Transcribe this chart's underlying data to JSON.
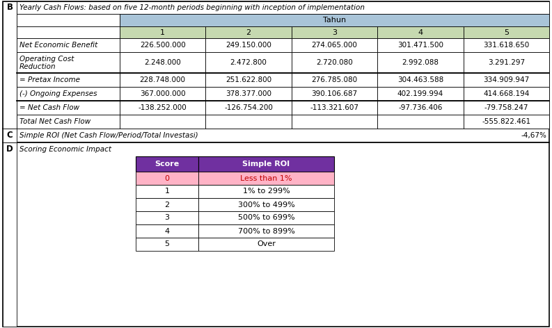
{
  "section_B_title": "Yearly Cash Flows: based on five 12-month periods beginning with inception of implementation",
  "tahun_header": "Tahun",
  "col_headers": [
    "1",
    "2",
    "3",
    "4",
    "5"
  ],
  "rows": [
    {
      "label": "Net Economic Benefit",
      "values": [
        "226.500.000",
        "249.150.000",
        "274.065.000",
        "301.471.500",
        "331.618.650"
      ],
      "top_border": false,
      "tall": false
    },
    {
      "label": "Operating Cost\nReduction",
      "values": [
        "2.248.000",
        "2.472.800",
        "2.720.080",
        "2.992.088",
        "3.291.297"
      ],
      "top_border": false,
      "tall": true
    },
    {
      "label": "= Pretax Income",
      "values": [
        "228.748.000",
        "251.622.800",
        "276.785.080",
        "304.463.588",
        "334.909.947"
      ],
      "top_border": true,
      "tall": false
    },
    {
      "label": "(-) Ongoing Expenses",
      "values": [
        "367.000.000",
        "378.377.000",
        "390.106.687",
        "402.199.994",
        "414.668.194"
      ],
      "top_border": false,
      "tall": false
    },
    {
      "label": "= Net Cash Flow",
      "values": [
        "-138.252.000",
        "-126.754.200",
        "-113.321.607",
        "-97.736.406",
        "-79.758.247"
      ],
      "top_border": true,
      "tall": false
    },
    {
      "label": "Total Net Cash Flow",
      "values": [
        "",
        "",
        "",
        "",
        "-555.822.461"
      ],
      "top_border": false,
      "tall": false
    }
  ],
  "section_C_text": "Simple ROI (Net Cash Flow/Period/Total Investasi)",
  "section_C_value": "-4,67%",
  "section_D_text": "Scoring Economic Impact",
  "score_headers": [
    "Score",
    "Simple ROI"
  ],
  "score_rows": [
    {
      "score": "0",
      "roi": "Less than 1%",
      "highlight": true
    },
    {
      "score": "1",
      "roi": "1% to 299%",
      "highlight": false
    },
    {
      "score": "2",
      "roi": "300% to 499%",
      "highlight": false
    },
    {
      "score": "3",
      "roi": "500% to 699%",
      "highlight": false
    },
    {
      "score": "4",
      "roi": "700% to 899%",
      "highlight": false
    },
    {
      "score": "5",
      "roi": "Over",
      "highlight": false
    }
  ],
  "color_tahun_bg": "#A9C4D8",
  "color_col_header_bg": "#C6D9B0",
  "color_purple": "#7030A0",
  "color_pink": "#FFB3C6",
  "color_pink_text": "#C00000",
  "color_white": "#FFFFFF",
  "color_black": "#000000",
  "color_gray_light": "#E8E8E8"
}
